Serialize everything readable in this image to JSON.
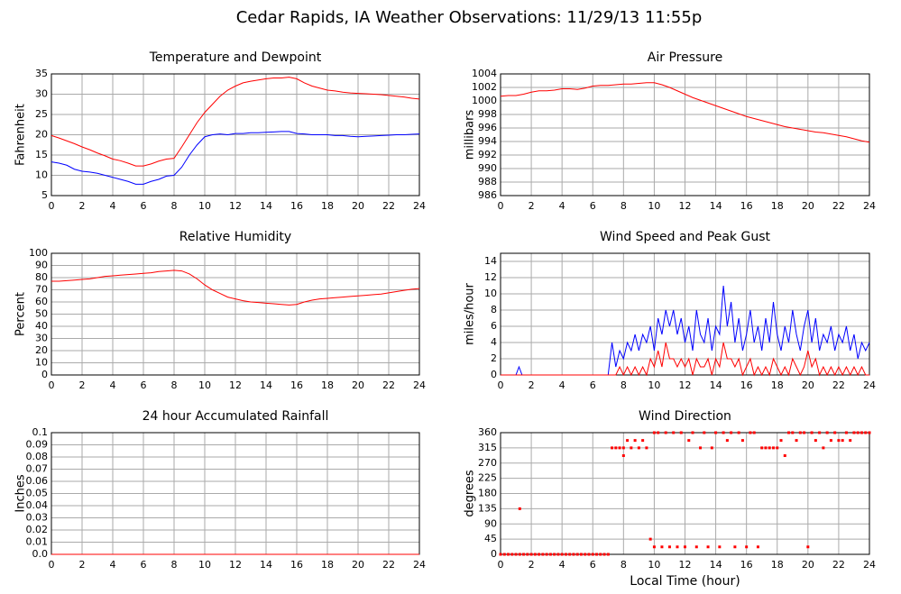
{
  "title": "Cedar Rapids, IA Weather Observations: 11/29/13 11:55p",
  "chart_data": [
    {
      "type": "line",
      "title": "Temperature and Dewpoint",
      "ylabel": "Fahrenheit",
      "x": [
        0,
        0.5,
        1,
        1.5,
        2,
        2.5,
        3,
        3.5,
        4,
        4.5,
        5,
        5.5,
        6,
        6.5,
        7,
        7.5,
        8,
        8.5,
        9,
        9.5,
        10,
        10.5,
        11,
        11.5,
        12,
        12.5,
        13,
        13.5,
        14,
        14.5,
        15,
        15.5,
        16,
        16.5,
        17,
        17.5,
        18,
        18.5,
        19,
        19.5,
        20,
        20.5,
        21,
        21.5,
        22,
        22.5,
        23,
        23.5,
        24
      ],
      "series": [
        {
          "color": "#ff0000",
          "values": [
            19.8,
            19.2,
            18.5,
            17.8,
            17,
            16.3,
            15.5,
            14.8,
            14,
            13.6,
            13,
            12.3,
            12.3,
            12.8,
            13.5,
            14,
            14.2,
            17,
            20,
            23,
            25.5,
            27.5,
            29.5,
            31,
            32,
            32.8,
            33.2,
            33.5,
            33.8,
            34,
            34,
            34.2,
            33.8,
            32.8,
            32,
            31.5,
            31,
            30.8,
            30.5,
            30.3,
            30.2,
            30.1,
            30,
            29.9,
            29.7,
            29.5,
            29.3,
            29,
            28.8
          ]
        },
        {
          "color": "#0000ff",
          "values": [
            13.3,
            13,
            12.5,
            11.5,
            11,
            10.8,
            10.5,
            10,
            9.5,
            9,
            8.5,
            7.8,
            7.8,
            8.5,
            9,
            9.8,
            10,
            12,
            15,
            17.5,
            19.5,
            20,
            20.2,
            20,
            20.3,
            20.3,
            20.5,
            20.5,
            20.6,
            20.7,
            20.8,
            20.8,
            20.3,
            20.2,
            20,
            20,
            20,
            19.8,
            19.8,
            19.6,
            19.5,
            19.6,
            19.7,
            19.8,
            19.9,
            20,
            20,
            20.1,
            20.2
          ]
        }
      ],
      "xlim": [
        0,
        24
      ],
      "xticks": [
        0,
        2,
        4,
        6,
        8,
        10,
        12,
        14,
        16,
        18,
        20,
        22,
        24
      ],
      "ylim": [
        5,
        35
      ],
      "yticks": [
        5,
        10,
        15,
        20,
        25,
        30,
        35
      ],
      "grid": true
    },
    {
      "type": "line",
      "title": "Air Pressure",
      "ylabel": "millibars",
      "x": [
        0,
        0.5,
        1,
        1.5,
        2,
        2.5,
        3,
        3.5,
        4,
        4.5,
        5,
        5.5,
        6,
        6.5,
        7,
        7.5,
        8,
        8.5,
        9,
        9.5,
        10,
        10.5,
        11,
        11.5,
        12,
        12.5,
        13,
        13.5,
        14,
        14.5,
        15,
        15.5,
        16,
        16.5,
        17,
        17.5,
        18,
        18.5,
        19,
        19.5,
        20,
        20.5,
        21,
        21.5,
        22,
        22.5,
        23,
        23.5,
        24
      ],
      "series": [
        {
          "color": "#ff0000",
          "values": [
            1000.7,
            1000.8,
            1000.8,
            1001,
            1001.3,
            1001.5,
            1001.5,
            1001.6,
            1001.8,
            1001.8,
            1001.7,
            1001.9,
            1002.2,
            1002.3,
            1002.3,
            1002.4,
            1002.5,
            1002.5,
            1002.6,
            1002.7,
            1002.7,
            1002.4,
            1002,
            1001.5,
            1001,
            1000.5,
            1000.1,
            999.7,
            999.3,
            998.9,
            998.5,
            998.1,
            997.7,
            997.4,
            997.1,
            996.8,
            996.5,
            996.2,
            996,
            995.8,
            995.6,
            995.4,
            995.3,
            995.1,
            994.9,
            994.7,
            994.4,
            994.1,
            993.9
          ]
        }
      ],
      "xlim": [
        0,
        24
      ],
      "xticks": [
        0,
        2,
        4,
        6,
        8,
        10,
        12,
        14,
        16,
        18,
        20,
        22,
        24
      ],
      "ylim": [
        986,
        1004
      ],
      "yticks": [
        986,
        988,
        990,
        992,
        994,
        996,
        998,
        1000,
        1002,
        1004
      ],
      "grid": true
    },
    {
      "type": "line",
      "title": "Relative Humidity",
      "ylabel": "Percent",
      "x": [
        0,
        0.5,
        1,
        1.5,
        2,
        2.5,
        3,
        3.5,
        4,
        4.5,
        5,
        5.5,
        6,
        6.5,
        7,
        7.5,
        8,
        8.5,
        9,
        9.5,
        10,
        10.5,
        11,
        11.5,
        12,
        12.5,
        13,
        13.5,
        14,
        14.5,
        15,
        15.5,
        16,
        16.5,
        17,
        17.5,
        18,
        18.5,
        19,
        19.5,
        20,
        20.5,
        21,
        21.5,
        22,
        22.5,
        23,
        23.5,
        24
      ],
      "series": [
        {
          "color": "#ff0000",
          "values": [
            77,
            77,
            77.5,
            78,
            78.5,
            79,
            80,
            81,
            81.5,
            82,
            82.5,
            83,
            83.5,
            84,
            85,
            85.5,
            86,
            85.5,
            83,
            79,
            74,
            70,
            67,
            64,
            62.5,
            61,
            60,
            59.5,
            59,
            58.5,
            58,
            57.5,
            58,
            60,
            61.5,
            62.5,
            63,
            63.5,
            64,
            64.5,
            65,
            65.5,
            66,
            66.5,
            67.5,
            68.5,
            69.5,
            70.5,
            71
          ]
        }
      ],
      "xlim": [
        0,
        24
      ],
      "xticks": [
        0,
        2,
        4,
        6,
        8,
        10,
        12,
        14,
        16,
        18,
        20,
        22,
        24
      ],
      "ylim": [
        0,
        100
      ],
      "yticks": [
        0,
        10,
        20,
        30,
        40,
        50,
        60,
        70,
        80,
        90,
        100
      ],
      "grid": true
    },
    {
      "type": "line",
      "title": "Wind Speed and Peak Gust",
      "ylabel": "miles/hour",
      "x": [
        0,
        1,
        1.2,
        1.4,
        2,
        3,
        4,
        5,
        6,
        7,
        7.25,
        7.5,
        7.75,
        8,
        8.25,
        8.5,
        8.75,
        9,
        9.25,
        9.5,
        9.75,
        10,
        10.25,
        10.5,
        10.75,
        11,
        11.25,
        11.5,
        11.75,
        12,
        12.25,
        12.5,
        12.75,
        13,
        13.25,
        13.5,
        13.75,
        14,
        14.25,
        14.5,
        14.75,
        15,
        15.25,
        15.5,
        15.75,
        16,
        16.25,
        16.5,
        16.75,
        17,
        17.25,
        17.5,
        17.75,
        18,
        18.25,
        18.5,
        18.75,
        19,
        19.25,
        19.5,
        19.75,
        20,
        20.25,
        20.5,
        20.75,
        21,
        21.25,
        21.5,
        21.75,
        22,
        22.25,
        22.5,
        22.75,
        23,
        23.25,
        23.5,
        23.75,
        24
      ],
      "series": [
        {
          "color": "#0000ff",
          "values": [
            0,
            0,
            1,
            0,
            0,
            0,
            0,
            0,
            0,
            0,
            4,
            1,
            3,
            2,
            4,
            3,
            5,
            3,
            5,
            4,
            6,
            3,
            7,
            5,
            8,
            6,
            8,
            5,
            7,
            4,
            6,
            3,
            8,
            5,
            4,
            7,
            3,
            6,
            5,
            11,
            6,
            9,
            4,
            7,
            3,
            5,
            8,
            4,
            6,
            3,
            7,
            4,
            9,
            5,
            3,
            6,
            4,
            8,
            5,
            3,
            6,
            8,
            4,
            7,
            3,
            5,
            4,
            6,
            3,
            5,
            4,
            6,
            3,
            5,
            2,
            4,
            3,
            4
          ]
        },
        {
          "color": "#ff0000",
          "values": [
            0,
            0,
            0,
            0,
            0,
            0,
            0,
            0,
            0,
            0,
            0,
            0,
            1,
            0,
            1,
            0,
            1,
            0,
            1,
            0,
            2,
            1,
            3,
            1,
            4,
            2,
            2,
            1,
            2,
            1,
            2,
            0,
            2,
            1,
            1,
            2,
            0,
            2,
            1,
            4,
            2,
            2,
            1,
            2,
            0,
            1,
            2,
            0,
            1,
            0,
            1,
            0,
            2,
            1,
            0,
            1,
            0,
            2,
            1,
            0,
            1,
            3,
            1,
            2,
            0,
            1,
            0,
            1,
            0,
            1,
            0,
            1,
            0,
            1,
            0,
            1,
            0,
            0
          ]
        }
      ],
      "xlim": [
        0,
        24
      ],
      "xticks": [
        0,
        2,
        4,
        6,
        8,
        10,
        12,
        14,
        16,
        18,
        20,
        22,
        24
      ],
      "ylim": [
        0,
        15
      ],
      "yticks": [
        0,
        2,
        4,
        6,
        8,
        10,
        12,
        14
      ],
      "grid": true
    },
    {
      "type": "line",
      "title": "24 hour Accumulated Rainfall",
      "ylabel": "Inches",
      "x": [
        0,
        24
      ],
      "series": [
        {
          "color": "#ff0000",
          "values": [
            0,
            0
          ]
        }
      ],
      "xlim": [
        0,
        24
      ],
      "xticks": [
        0,
        2,
        4,
        6,
        8,
        10,
        12,
        14,
        16,
        18,
        20,
        22,
        24
      ],
      "ylim": [
        0,
        0.1
      ],
      "yticks": [
        {
          "value": 0,
          "label": "0.0"
        },
        0.01,
        0.02,
        0.03,
        0.04,
        0.05,
        0.06,
        0.07,
        0.08,
        0.09,
        0.1
      ],
      "grid": true
    },
    {
      "type": "scatter",
      "title": "Wind Direction",
      "ylabel": "degrees",
      "xlabel": "Local Time (hour)",
      "x": [
        0,
        0.25,
        0.5,
        0.75,
        1,
        1.25,
        1.5,
        1.75,
        2,
        2.25,
        2.5,
        2.75,
        3,
        3.25,
        3.5,
        3.75,
        4,
        4.25,
        4.5,
        4.75,
        5,
        5.25,
        5.5,
        5.75,
        6,
        6.25,
        6.5,
        6.75,
        7,
        1.25,
        7.25,
        7.5,
        7.75,
        8,
        8,
        8.25,
        8.5,
        8.75,
        9,
        9.25,
        9.5,
        9.75,
        10,
        10,
        10.25,
        10.5,
        10.75,
        11,
        11.25,
        11.5,
        11.75,
        12,
        12.25,
        12.5,
        12.75,
        13,
        13.25,
        13.5,
        13.75,
        14,
        14.25,
        14.5,
        14.75,
        15,
        15.25,
        15.5,
        15.75,
        16,
        16.25,
        16.5,
        16.75,
        17,
        17.25,
        17.5,
        17.75,
        18,
        18.25,
        18.5,
        18.75,
        19,
        19.25,
        19.5,
        19.75,
        20,
        20.25,
        20.5,
        20.75,
        21,
        21.25,
        21.5,
        21.75,
        22,
        22.25,
        22.5,
        22.75,
        23,
        23.25,
        23.5,
        23.75,
        24
      ],
      "series": [
        {
          "color": "#ff0000",
          "values": [
            0,
            0,
            0,
            0,
            0,
            0,
            0,
            0,
            0,
            0,
            0,
            0,
            0,
            0,
            0,
            0,
            0,
            0,
            0,
            0,
            0,
            0,
            0,
            0,
            0,
            0,
            0,
            0,
            0,
            135,
            315,
            315,
            315,
            315,
            292,
            337,
            315,
            337,
            315,
            337,
            315,
            45,
            22,
            360,
            360,
            22,
            360,
            22,
            360,
            22,
            360,
            22,
            337,
            360,
            22,
            315,
            360,
            22,
            315,
            360,
            22,
            360,
            337,
            360,
            22,
            360,
            337,
            22,
            360,
            360,
            22,
            315,
            315,
            315,
            315,
            315,
            337,
            292,
            360,
            360,
            337,
            360,
            360,
            22,
            360,
            337,
            360,
            315,
            360,
            337,
            360,
            337,
            337,
            360,
            337,
            360,
            360,
            360,
            360,
            360
          ]
        }
      ],
      "xlim": [
        0,
        24
      ],
      "xticks": [
        0,
        2,
        4,
        6,
        8,
        10,
        12,
        14,
        16,
        18,
        20,
        22,
        24
      ],
      "ylim": [
        0,
        360
      ],
      "yticks": [
        0,
        45,
        90,
        135,
        180,
        225,
        270,
        315,
        360
      ],
      "grid": true
    }
  ]
}
